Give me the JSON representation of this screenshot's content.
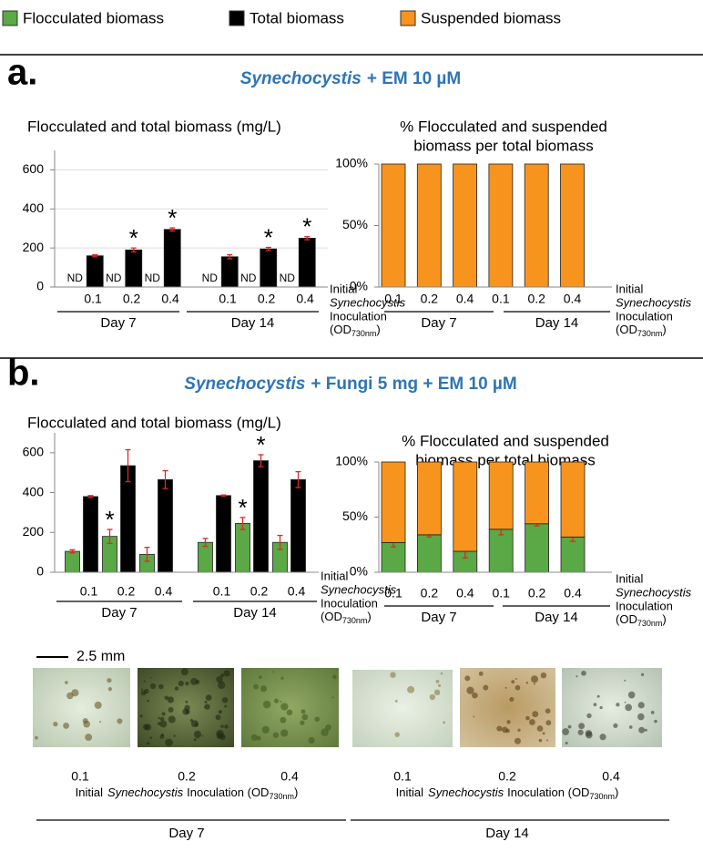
{
  "legend": [
    {
      "name": "Flocculated biomass",
      "color": "#5aa846"
    },
    {
      "name": "Total biomass",
      "color": "#000000"
    },
    {
      "name": "Suspended biomass",
      "color": "#f7941d"
    }
  ],
  "panels": [
    {
      "label": "a.",
      "title_italic": "Synechocystis",
      "title": "+ EM 10 µM"
    },
    {
      "label": "b.",
      "title_italic": "Synechocystis",
      "title": "+ Fungi 5 mg + EM 10 µM"
    }
  ],
  "axis_note": {
    "lines": [
      "Initial",
      "Synechocystis",
      "Inoculation"
    ],
    "od": "(OD",
    "sub": "730nm",
    "close": ")"
  },
  "chart_data": [
    {
      "type": "bar",
      "title": "Flocculated and total biomass (mg/L)",
      "categories": [
        "0.1",
        "0.2",
        "0.4",
        "0.1",
        "0.2",
        "0.4"
      ],
      "groups": [
        "Day 7",
        "Day 14"
      ],
      "ylim": [
        0,
        700
      ],
      "yticks": [
        0,
        200,
        400,
        600
      ],
      "grid": true,
      "significance_marker": "*",
      "error_color": "#e0291f",
      "series": [
        {
          "color": "#5aa846",
          "values": [
            null,
            null,
            null,
            null,
            null,
            null
          ],
          "value_labels": [
            "ND",
            "ND",
            "ND",
            "ND",
            "ND",
            "ND"
          ]
        },
        {
          "color": "#000000",
          "values": [
            160,
            190,
            295,
            155,
            195,
            250
          ],
          "errors": [
            5,
            10,
            8,
            10,
            8,
            8
          ],
          "significant": [
            false,
            true,
            true,
            false,
            true,
            true
          ]
        }
      ]
    },
    {
      "type": "stacked_bar",
      "title_lines": [
        "% Flocculated and suspended",
        "biomass per total biomass"
      ],
      "categories": [
        "0.1",
        "0.2",
        "0.4",
        "0.1",
        "0.2",
        "0.4"
      ],
      "groups": [
        "Day 7",
        "Day 14"
      ],
      "ylim": [
        0,
        100
      ],
      "yticks": [
        {
          "value": 0,
          "label": "0%"
        },
        {
          "value": 50,
          "label": "50%"
        },
        {
          "value": 100,
          "label": "100%"
        }
      ],
      "grid": false,
      "error_color": "#e0291f",
      "series": [
        {
          "color": "#5aa846",
          "values": [
            0,
            0,
            0,
            0,
            0,
            0
          ]
        },
        {
          "color": "#f7941d",
          "values": [
            100,
            100,
            100,
            100,
            100,
            100
          ]
        }
      ]
    },
    {
      "type": "bar",
      "title": "Flocculated and total biomass (mg/L)",
      "categories": [
        "0.1",
        "0.2",
        "0.4",
        "0.1",
        "0.2",
        "0.4"
      ],
      "groups": [
        "Day 7",
        "Day 14"
      ],
      "ylim": [
        0,
        700
      ],
      "yticks": [
        0,
        200,
        400,
        600
      ],
      "grid": false,
      "significance_marker": "*",
      "error_color": "#e0291f",
      "series": [
        {
          "color": "#5aa846",
          "values": [
            105,
            180,
            90,
            150,
            245,
            150
          ],
          "errors": [
            8,
            35,
            35,
            20,
            30,
            35
          ],
          "significant": [
            false,
            true,
            false,
            false,
            true,
            false
          ]
        },
        {
          "color": "#000000",
          "values": [
            380,
            535,
            465,
            385,
            560,
            465
          ],
          "errors": [
            5,
            80,
            45,
            3,
            30,
            40
          ],
          "significant": [
            false,
            false,
            false,
            false,
            true,
            false
          ]
        }
      ]
    },
    {
      "type": "stacked_bar",
      "title_lines": [
        "% Flocculated and suspended",
        "biomass per total biomass"
      ],
      "categories": [
        "0.1",
        "0.2",
        "0.4",
        "0.1",
        "0.2",
        "0.4"
      ],
      "groups": [
        "Day 7",
        "Day 14"
      ],
      "ylim": [
        0,
        100
      ],
      "yticks": [
        {
          "value": 0,
          "label": "0%"
        },
        {
          "value": 50,
          "label": "50%"
        },
        {
          "value": 100,
          "label": "100%"
        }
      ],
      "grid": false,
      "significance_marker": "*",
      "error_color": "#e0291f",
      "series": [
        {
          "color": "#5aa846",
          "values": [
            27,
            34,
            19,
            39,
            44,
            32
          ],
          "errors": [
            4,
            2,
            6,
            5,
            2,
            4
          ],
          "significant": [
            false,
            true,
            false,
            false,
            true,
            false
          ]
        },
        {
          "color": "#f7941d",
          "values": [
            73,
            66,
            81,
            61,
            56,
            68
          ]
        }
      ]
    }
  ],
  "photos": {
    "scale": "2.5 mm",
    "sets": [
      {
        "labels": [
          "0.1",
          "0.2",
          "0.4"
        ],
        "caption_start": "Initial",
        "caption_italic": "Synechocystis",
        "caption_end": "Inoculation (OD",
        "caption_sub": "730nm",
        "caption_close": ")",
        "day": "Day 7"
      },
      {
        "labels": [
          "0.1",
          "0.2",
          "0.4"
        ],
        "caption_start": "Initial",
        "caption_italic": "Synechocystis",
        "caption_end": "Inoculation (OD",
        "caption_sub": "730nm",
        "caption_close": ")",
        "day": "Day 14"
      }
    ]
  }
}
